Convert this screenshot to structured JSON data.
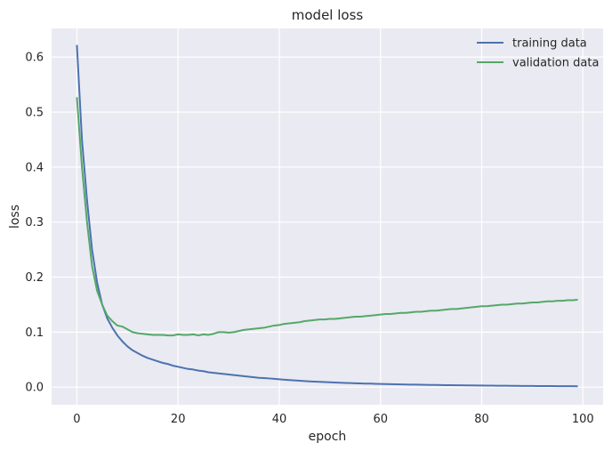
{
  "chart_data": {
    "type": "line",
    "title": "model loss",
    "xlabel": "epoch",
    "ylabel": "loss",
    "xlim": [
      -5,
      104
    ],
    "ylim": [
      -0.032,
      0.652
    ],
    "xticks": [
      0,
      20,
      40,
      60,
      80,
      100
    ],
    "yticks": [
      0.0,
      0.1,
      0.2,
      0.3,
      0.4,
      0.5,
      0.6
    ],
    "grid": true,
    "legend_position": "top-right",
    "background_color": "#EAEAF2",
    "grid_color": "#FFFFFF",
    "series": [
      {
        "name": "training data",
        "color": "#4C72B0",
        "x": [
          0,
          1,
          2,
          3,
          4,
          5,
          6,
          7,
          8,
          9,
          10,
          11,
          12,
          13,
          14,
          15,
          16,
          17,
          18,
          19,
          20,
          21,
          22,
          23,
          24,
          25,
          26,
          27,
          28,
          29,
          30,
          31,
          32,
          33,
          34,
          35,
          36,
          37,
          38,
          39,
          40,
          41,
          42,
          43,
          44,
          45,
          46,
          47,
          48,
          49,
          50,
          51,
          52,
          53,
          54,
          55,
          56,
          57,
          58,
          59,
          60,
          61,
          62,
          63,
          64,
          65,
          66,
          67,
          68,
          69,
          70,
          71,
          72,
          73,
          74,
          75,
          76,
          77,
          78,
          79,
          80,
          81,
          82,
          83,
          84,
          85,
          86,
          87,
          88,
          89,
          90,
          91,
          92,
          93,
          94,
          95,
          96,
          97,
          98,
          99
        ],
        "y": [
          0.622,
          0.45,
          0.34,
          0.25,
          0.19,
          0.15,
          0.125,
          0.108,
          0.094,
          0.083,
          0.074,
          0.067,
          0.062,
          0.057,
          0.053,
          0.05,
          0.047,
          0.044,
          0.042,
          0.039,
          0.037,
          0.035,
          0.033,
          0.032,
          0.03,
          0.029,
          0.027,
          0.026,
          0.025,
          0.024,
          0.023,
          0.022,
          0.021,
          0.02,
          0.019,
          0.018,
          0.017,
          0.0165,
          0.0158,
          0.015,
          0.0142,
          0.0135,
          0.0128,
          0.0122,
          0.0116,
          0.011,
          0.0105,
          0.01,
          0.0096,
          0.0092,
          0.0088,
          0.0084,
          0.008,
          0.0077,
          0.0074,
          0.0071,
          0.0068,
          0.0065,
          0.0063,
          0.006,
          0.0058,
          0.0056,
          0.0054,
          0.0052,
          0.005,
          0.0048,
          0.0046,
          0.0045,
          0.0043,
          0.0042,
          0.004,
          0.0039,
          0.0038,
          0.0036,
          0.0035,
          0.0034,
          0.0033,
          0.0032,
          0.0031,
          0.003,
          0.0029,
          0.0028,
          0.0027,
          0.0026,
          0.0025,
          0.0025,
          0.0024,
          0.0023,
          0.0022,
          0.0022,
          0.0021,
          0.002,
          0.002,
          0.0019,
          0.0019,
          0.0018,
          0.0018,
          0.0017,
          0.0017,
          0.0016
        ]
      },
      {
        "name": "validation data",
        "color": "#55A868",
        "x": [
          0,
          1,
          2,
          3,
          4,
          5,
          6,
          7,
          8,
          9,
          10,
          11,
          12,
          13,
          14,
          15,
          16,
          17,
          18,
          19,
          20,
          21,
          22,
          23,
          24,
          25,
          26,
          27,
          28,
          29,
          30,
          31,
          32,
          33,
          34,
          35,
          36,
          37,
          38,
          39,
          40,
          41,
          42,
          43,
          44,
          45,
          46,
          47,
          48,
          49,
          50,
          51,
          52,
          53,
          54,
          55,
          56,
          57,
          58,
          59,
          60,
          61,
          62,
          63,
          64,
          65,
          66,
          67,
          68,
          69,
          70,
          71,
          72,
          73,
          74,
          75,
          76,
          77,
          78,
          79,
          80,
          81,
          82,
          83,
          84,
          85,
          86,
          87,
          88,
          89,
          90,
          91,
          92,
          93,
          94,
          95,
          96,
          97,
          98,
          99
        ],
        "y": [
          0.527,
          0.4,
          0.3,
          0.22,
          0.175,
          0.15,
          0.13,
          0.12,
          0.112,
          0.11,
          0.105,
          0.1,
          0.098,
          0.097,
          0.096,
          0.095,
          0.095,
          0.095,
          0.094,
          0.094,
          0.096,
          0.095,
          0.095,
          0.096,
          0.094,
          0.096,
          0.095,
          0.097,
          0.1,
          0.1,
          0.099,
          0.1,
          0.102,
          0.104,
          0.105,
          0.106,
          0.107,
          0.108,
          0.11,
          0.112,
          0.113,
          0.115,
          0.116,
          0.117,
          0.118,
          0.12,
          0.121,
          0.122,
          0.123,
          0.123,
          0.124,
          0.124,
          0.125,
          0.126,
          0.127,
          0.128,
          0.128,
          0.129,
          0.13,
          0.131,
          0.132,
          0.133,
          0.133,
          0.134,
          0.135,
          0.135,
          0.136,
          0.137,
          0.137,
          0.138,
          0.139,
          0.139,
          0.14,
          0.141,
          0.142,
          0.142,
          0.143,
          0.144,
          0.145,
          0.146,
          0.147,
          0.147,
          0.148,
          0.149,
          0.15,
          0.15,
          0.151,
          0.152,
          0.152,
          0.153,
          0.154,
          0.154,
          0.155,
          0.156,
          0.156,
          0.157,
          0.157,
          0.158,
          0.158,
          0.159
        ]
      }
    ]
  }
}
